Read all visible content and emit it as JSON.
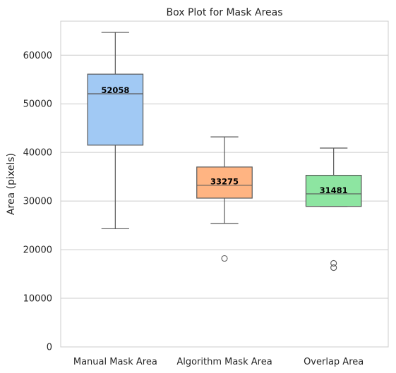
{
  "chart_data": {
    "type": "box",
    "title": "Box Plot for Mask Areas",
    "xlabel": "",
    "ylabel": "Area (pixels)",
    "ylim": [
      0,
      67000
    ],
    "yticks": [
      0,
      10000,
      20000,
      30000,
      40000,
      50000,
      60000
    ],
    "grid": true,
    "categories": [
      "Manual Mask Area",
      "Algorithm Mask Area",
      "Overlap Area"
    ],
    "boxes": [
      {
        "name": "Manual Mask Area",
        "whisker_low": 24300,
        "q1": 41500,
        "median": 52058,
        "q3": 56100,
        "whisker_high": 64700,
        "outliers": [],
        "median_label": "52058",
        "color": "#a1c9f4"
      },
      {
        "name": "Algorithm Mask Area",
        "whisker_low": 25400,
        "q1": 30600,
        "median": 33275,
        "q3": 37000,
        "whisker_high": 43200,
        "outliers": [
          18200
        ],
        "median_label": "33275",
        "color": "#ffb482"
      },
      {
        "name": "Overlap Area",
        "whisker_low": 28900,
        "q1": 28900,
        "median": 31481,
        "q3": 35300,
        "whisker_high": 40900,
        "outliers": [
          17200,
          16300
        ],
        "median_label": "31481",
        "color": "#8de5a1"
      }
    ],
    "line_color": "#595959",
    "grid_color": "#cccccc"
  }
}
